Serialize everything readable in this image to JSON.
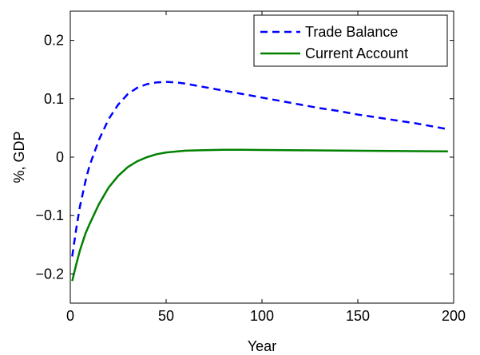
{
  "chart_data": {
    "type": "line",
    "title": "",
    "xlabel": "Year",
    "ylabel": "%, GDP",
    "xlim": [
      0,
      200
    ],
    "ylim": [
      -0.25,
      0.25
    ],
    "xticks": [
      0,
      50,
      100,
      150,
      200
    ],
    "yticks": [
      -0.2,
      -0.1,
      0,
      0.1,
      0.2
    ],
    "xtick_labels": [
      "0",
      "50",
      "100",
      "150",
      "200"
    ],
    "ytick_labels": [
      "−0.2",
      "−0.1",
      "0",
      "0.1",
      "0.2"
    ],
    "grid": false,
    "legend_position": "top-right",
    "series": [
      {
        "name": "Trade Balance",
        "color": "#0000ff",
        "style": "dashed",
        "x": [
          1,
          3,
          5,
          8,
          10,
          15,
          20,
          25,
          30,
          35,
          40,
          45,
          50,
          55,
          60,
          70,
          80,
          90,
          100,
          110,
          120,
          130,
          140,
          150,
          160,
          170,
          180,
          190,
          197
        ],
        "y": [
          -0.17,
          -0.125,
          -0.085,
          -0.04,
          -0.015,
          0.03,
          0.065,
          0.09,
          0.108,
          0.119,
          0.125,
          0.128,
          0.129,
          0.128,
          0.126,
          0.12,
          0.114,
          0.108,
          0.102,
          0.096,
          0.09,
          0.084,
          0.079,
          0.073,
          0.068,
          0.063,
          0.058,
          0.052,
          0.048
        ]
      },
      {
        "name": "Current Account",
        "color": "#008000",
        "style": "solid",
        "x": [
          1,
          3,
          5,
          8,
          10,
          15,
          20,
          25,
          30,
          35,
          40,
          45,
          50,
          60,
          70,
          80,
          90,
          100,
          120,
          140,
          160,
          180,
          197
        ],
        "y": [
          -0.212,
          -0.185,
          -0.16,
          -0.13,
          -0.115,
          -0.08,
          -0.052,
          -0.032,
          -0.017,
          -0.007,
          0.0,
          0.005,
          0.008,
          0.011,
          0.012,
          0.0125,
          0.0125,
          0.0123,
          0.0118,
          0.0113,
          0.0108,
          0.0103,
          0.01
        ]
      }
    ]
  }
}
